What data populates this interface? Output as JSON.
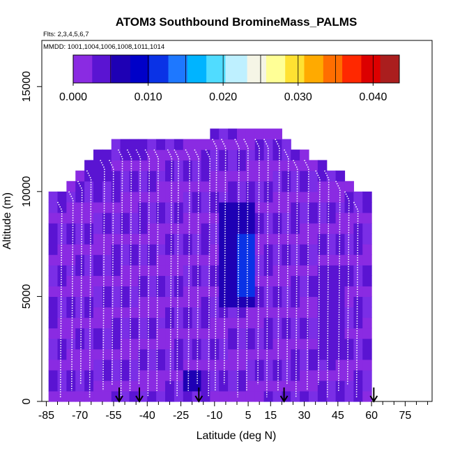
{
  "chart_data": {
    "type": "heatmap",
    "title": "ATOM3 Southbound BromineMass_PALMS",
    "flights_note": "Flts: 2,3,4,5,6,7",
    "dates_note": "MMDD: 1001,1004,1006,1008,1011,1014",
    "xlabel": "Latitude (deg N)",
    "ylabel": "Altitude (m)",
    "xlim": [
      -87,
      87
    ],
    "ylim": [
      0,
      17200
    ],
    "x_ticks": [
      -85,
      -70,
      -55,
      -40,
      -25,
      -10,
      5,
      15,
      30,
      45,
      60,
      75
    ],
    "x_minor_ticks": [
      -80,
      -75,
      -65,
      -60,
      -50,
      -45,
      -35,
      -30,
      -20,
      -15,
      -5,
      0,
      10,
      20,
      25,
      35,
      40,
      50,
      55,
      65,
      70,
      80,
      85
    ],
    "y_ticks": [
      0,
      5000,
      10000,
      15000
    ],
    "colorbar": {
      "range": [
        0,
        0.0435
      ],
      "ticks": [
        0.0,
        0.01,
        0.02,
        0.03,
        0.04
      ],
      "tick_labels": [
        "0.000",
        "0.010",
        "0.020",
        "0.030",
        "0.040"
      ],
      "colors": [
        "#8a2be2",
        "#5a14d2",
        "#1e00b4",
        "#0000c8",
        "#0a32e6",
        "#1e78ff",
        "#00b4ff",
        "#50dcff",
        "#bef0ff",
        "#f5f5e6",
        "#ffff96",
        "#ffe132",
        "#ffaa00",
        "#ff6e00",
        "#ff2800",
        "#dc0000",
        "#aa1e1e"
      ]
    },
    "max_altitude_profile": {
      "latitude": [
        -82,
        -78,
        -74,
        -70,
        -66,
        -62,
        -58,
        -54,
        -50,
        -46,
        -42,
        -38,
        -34,
        -30,
        -26,
        -22,
        -18,
        -14,
        -10,
        -6,
        -2,
        2,
        6,
        10,
        14,
        18,
        22,
        26,
        30,
        34,
        38,
        42,
        46,
        50,
        54,
        58
      ],
      "altitude": [
        10000,
        10000,
        10500,
        11000,
        11500,
        12000,
        12000,
        12500,
        12500,
        12500,
        12500,
        12500,
        12500,
        12500,
        12500,
        12500,
        12500,
        12500,
        13000,
        13000,
        13000,
        13000,
        13000,
        13000,
        13000,
        13000,
        12500,
        12000,
        12000,
        11500,
        11500,
        11000,
        11000,
        10500,
        10000,
        10000
      ]
    },
    "enhanced_regions": [
      {
        "lat": [
          -6,
          8
        ],
        "alt": [
          4200,
          9500
        ],
        "value": 0.006
      },
      {
        "lat": [
          2,
          6
        ],
        "alt": [
          5000,
          8000
        ],
        "value": 0.012
      },
      {
        "lat": [
          -22,
          -16
        ],
        "alt": [
          500,
          1500
        ],
        "value": 0.006
      },
      {
        "lat": [
          36,
          48
        ],
        "alt": [
          2000,
          6500
        ],
        "value": 0.005
      },
      {
        "lat": [
          -68,
          -58
        ],
        "alt": [
          10500,
          12000
        ],
        "value": 0.005
      },
      {
        "lat": [
          -50,
          -44
        ],
        "alt": [
          11500,
          12500
        ],
        "value": 0.005
      }
    ],
    "flight_markers_lat": [
      -52.5,
      -43.5,
      -17,
      21,
      61
    ],
    "flight_track_lats": [
      -79,
      -74,
      -70,
      -66,
      -60,
      -56,
      -52,
      -48,
      -44,
      -40,
      -36,
      -30,
      -27,
      -22,
      -18,
      -13,
      -10,
      -6,
      0,
      4,
      9,
      13,
      18,
      22,
      26,
      31,
      36,
      40,
      45,
      49,
      53
    ]
  }
}
